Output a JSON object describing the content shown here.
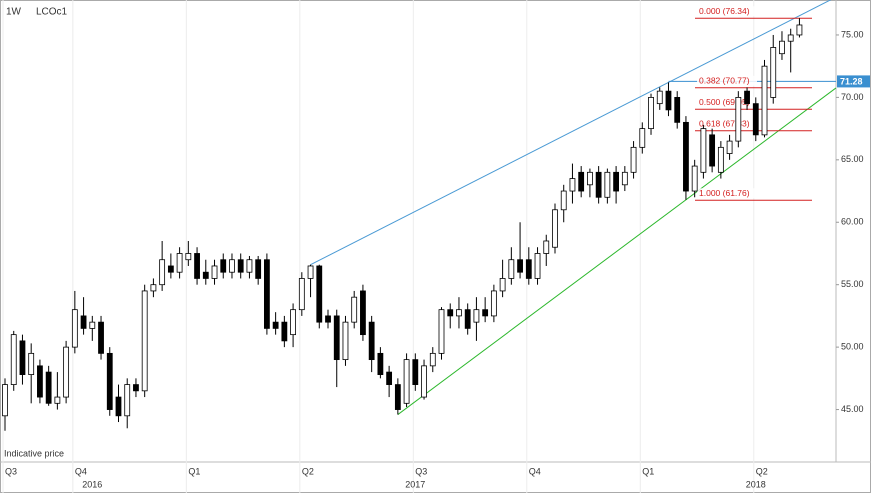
{
  "chart_data": {
    "type": "candlestick",
    "interval": "1W",
    "symbol": "LCOc1",
    "footnote": "Indicative price",
    "ylim": [
      40.8,
      77.8
    ],
    "yticks": [
      {
        "value": 45,
        "label": "45.00"
      },
      {
        "value": 50,
        "label": "50.00"
      },
      {
        "value": 55,
        "label": "55.00"
      },
      {
        "value": 60,
        "label": "60.00"
      },
      {
        "value": 65,
        "label": "65.00"
      },
      {
        "value": 70,
        "label": "70.00"
      },
      {
        "value": 75,
        "label": "75.00"
      }
    ],
    "categories": [
      "Q3",
      null,
      null,
      null,
      null,
      null,
      null,
      null,
      "Q4",
      null,
      null,
      null,
      null,
      null,
      null,
      null,
      null,
      null,
      null,
      null,
      null,
      "Q1",
      null,
      null,
      null,
      null,
      null,
      null,
      null,
      null,
      null,
      null,
      null,
      null,
      "Q2",
      null,
      null,
      null,
      null,
      null,
      null,
      null,
      null,
      null,
      null,
      null,
      null,
      "Q3",
      null,
      null,
      null,
      null,
      null,
      null,
      null,
      null,
      null,
      null,
      null,
      null,
      "Q4",
      null,
      null,
      null,
      null,
      null,
      null,
      null,
      null,
      null,
      null,
      null,
      null,
      "Q1",
      null,
      null,
      null,
      null,
      null,
      null,
      null,
      null,
      null,
      null,
      null,
      null,
      "Q2",
      null,
      null,
      null,
      null,
      null
    ],
    "year_labels": [
      null,
      null,
      null,
      null,
      null,
      null,
      null,
      null,
      null,
      null,
      "2016",
      null,
      null,
      null,
      null,
      null,
      null,
      null,
      null,
      null,
      null,
      null,
      null,
      null,
      null,
      null,
      null,
      null,
      null,
      null,
      null,
      null,
      null,
      null,
      null,
      null,
      null,
      null,
      null,
      null,
      null,
      null,
      null,
      null,
      null,
      null,
      null,
      "2017",
      null,
      null,
      null,
      null,
      null,
      null,
      null,
      null,
      null,
      null,
      null,
      null,
      null,
      null,
      null,
      null,
      null,
      null,
      null,
      null,
      null,
      null,
      null,
      null,
      null,
      null,
      null,
      null,
      null,
      null,
      null,
      null,
      null,
      null,
      null,
      null,
      null,
      null,
      "2018",
      null,
      null,
      null,
      null,
      null
    ],
    "ohlc": [
      [
        44.5,
        47.5,
        43.3,
        47
      ],
      [
        47,
        51.3,
        46.5,
        51
      ],
      [
        50.5,
        51,
        47,
        47.8
      ],
      [
        47.8,
        50.3,
        45.5,
        49.5
      ],
      [
        48.5,
        49,
        45.5,
        46
      ],
      [
        48,
        48.5,
        45.3,
        45.5
      ],
      [
        45.5,
        48,
        45,
        46
      ],
      [
        46,
        50.5,
        45.5,
        50
      ],
      [
        50,
        54.5,
        49.5,
        53
      ],
      [
        52.5,
        54,
        51,
        51.5
      ],
      [
        51.5,
        52.5,
        50.5,
        52
      ],
      [
        52,
        52.5,
        49,
        49.5
      ],
      [
        49.5,
        50,
        44.5,
        45
      ],
      [
        46,
        47,
        44,
        44.5
      ],
      [
        44.5,
        47.5,
        43.5,
        47
      ],
      [
        47,
        47.5,
        46,
        46.5
      ],
      [
        46.5,
        55,
        46,
        54.5
      ],
      [
        54.5,
        55.5,
        54,
        55
      ],
      [
        55,
        58.5,
        54.5,
        57
      ],
      [
        56.5,
        57.5,
        55.5,
        56
      ],
      [
        56,
        58,
        55.5,
        57.5
      ],
      [
        57,
        58.5,
        56.5,
        57.5
      ],
      [
        57.5,
        58,
        55,
        55.5
      ],
      [
        56,
        57,
        55,
        55.5
      ],
      [
        55.5,
        57,
        55,
        56.5
      ],
      [
        57,
        57.5,
        55.5,
        56
      ],
      [
        56,
        57.5,
        55.5,
        57
      ],
      [
        57,
        57.5,
        55.5,
        56
      ],
      [
        56,
        57.3,
        55.5,
        57
      ],
      [
        57,
        57.3,
        55,
        55.5
      ],
      [
        57,
        57.5,
        51,
        51.5
      ],
      [
        52,
        52.8,
        51,
        51.5
      ],
      [
        52,
        52.5,
        50,
        50.5
      ],
      [
        51,
        53.5,
        50,
        53
      ],
      [
        53,
        56,
        52.5,
        55.5
      ],
      [
        55.5,
        56.6,
        54,
        56.5
      ],
      [
        56.5,
        56.6,
        51.5,
        52
      ],
      [
        52.5,
        53,
        51.5,
        52
      ],
      [
        52.5,
        53,
        46.8,
        49
      ],
      [
        49,
        52.5,
        48.5,
        52
      ],
      [
        52,
        54.5,
        51.5,
        54
      ],
      [
        54.5,
        55,
        50.5,
        51
      ],
      [
        52,
        52.5,
        48,
        49
      ],
      [
        49.5,
        50,
        47.5,
        47.8
      ],
      [
        48,
        48.5,
        46,
        47
      ],
      [
        47,
        47.5,
        44.6,
        45
      ],
      [
        45.5,
        49.5,
        45.2,
        49
      ],
      [
        49,
        49.5,
        46.5,
        47
      ],
      [
        46,
        49,
        45.8,
        48.5
      ],
      [
        48.5,
        50,
        48,
        49.5
      ],
      [
        49.5,
        53.2,
        49,
        53
      ],
      [
        53,
        53.5,
        51.5,
        52.5
      ],
      [
        52.5,
        54,
        51.5,
        53
      ],
      [
        53,
        53.5,
        51,
        51.5
      ],
      [
        52,
        54,
        50.5,
        53
      ],
      [
        53,
        54,
        52,
        52.5
      ],
      [
        52.5,
        55,
        52,
        54.5
      ],
      [
        54.5,
        57,
        54,
        55.5
      ],
      [
        55.5,
        58,
        55,
        57
      ],
      [
        57,
        60,
        55.5,
        56
      ],
      [
        57,
        58,
        55,
        55.5
      ],
      [
        55.5,
        58,
        55,
        57.5
      ],
      [
        57.5,
        59,
        56.5,
        58.5
      ],
      [
        58,
        61.5,
        57.5,
        61
      ],
      [
        61,
        63,
        60,
        62.5
      ],
      [
        62.5,
        64.7,
        61.5,
        63.5
      ],
      [
        64,
        64.5,
        62,
        62.5
      ],
      [
        63,
        64.3,
        62,
        64
      ],
      [
        64,
        64.5,
        61.5,
        62
      ],
      [
        62,
        64.3,
        61.5,
        64
      ],
      [
        64,
        64.5,
        61.5,
        62.5
      ],
      [
        63,
        64.5,
        62.5,
        64
      ],
      [
        64,
        66.5,
        63.5,
        66
      ],
      [
        66,
        68,
        65.5,
        67.5
      ],
      [
        67.5,
        70.3,
        67,
        70
      ],
      [
        69.5,
        70.8,
        69,
        70.5
      ],
      [
        70.5,
        71.2,
        68.5,
        69
      ],
      [
        70,
        70.5,
        67.5,
        68
      ],
      [
        68,
        68.5,
        61.8,
        62.5
      ],
      [
        62.5,
        65,
        62,
        64.5
      ],
      [
        64,
        67.8,
        63.5,
        67.5
      ],
      [
        67,
        67.5,
        64,
        64.5
      ],
      [
        64,
        66.5,
        63.5,
        66
      ],
      [
        65.5,
        67,
        65,
        66.5
      ],
      [
        66.5,
        70.5,
        66,
        70
      ],
      [
        70.5,
        70.8,
        69,
        69.5
      ],
      [
        69.5,
        70,
        66.5,
        67
      ],
      [
        67,
        73,
        66.8,
        72.5
      ],
      [
        70,
        75,
        69.5,
        74
      ],
      [
        73.5,
        75.3,
        73,
        74.5
      ],
      [
        74.5,
        75.5,
        72,
        75
      ],
      [
        75,
        76.34,
        74.8,
        75.8
      ]
    ],
    "up_color": "#ffffff",
    "down_color": "#000000",
    "fib_color": "#d42020",
    "fib_levels": [
      {
        "value": 76.34,
        "label": "0.000 (76.34)"
      },
      {
        "value": 70.77,
        "label": "0.382 (70.77)"
      },
      {
        "value": 69.05,
        "label": "0.500 (69.05)"
      },
      {
        "value": 67.33,
        "label": "0.618 (67.33)"
      },
      {
        "value": 61.76,
        "label": "1.000 (61.76)"
      }
    ],
    "last_price": 71.28,
    "last_price_color": "#3a8fd0",
    "upper_trend_color": "#4a9ad4",
    "lower_trend_color": "#2db82d"
  }
}
